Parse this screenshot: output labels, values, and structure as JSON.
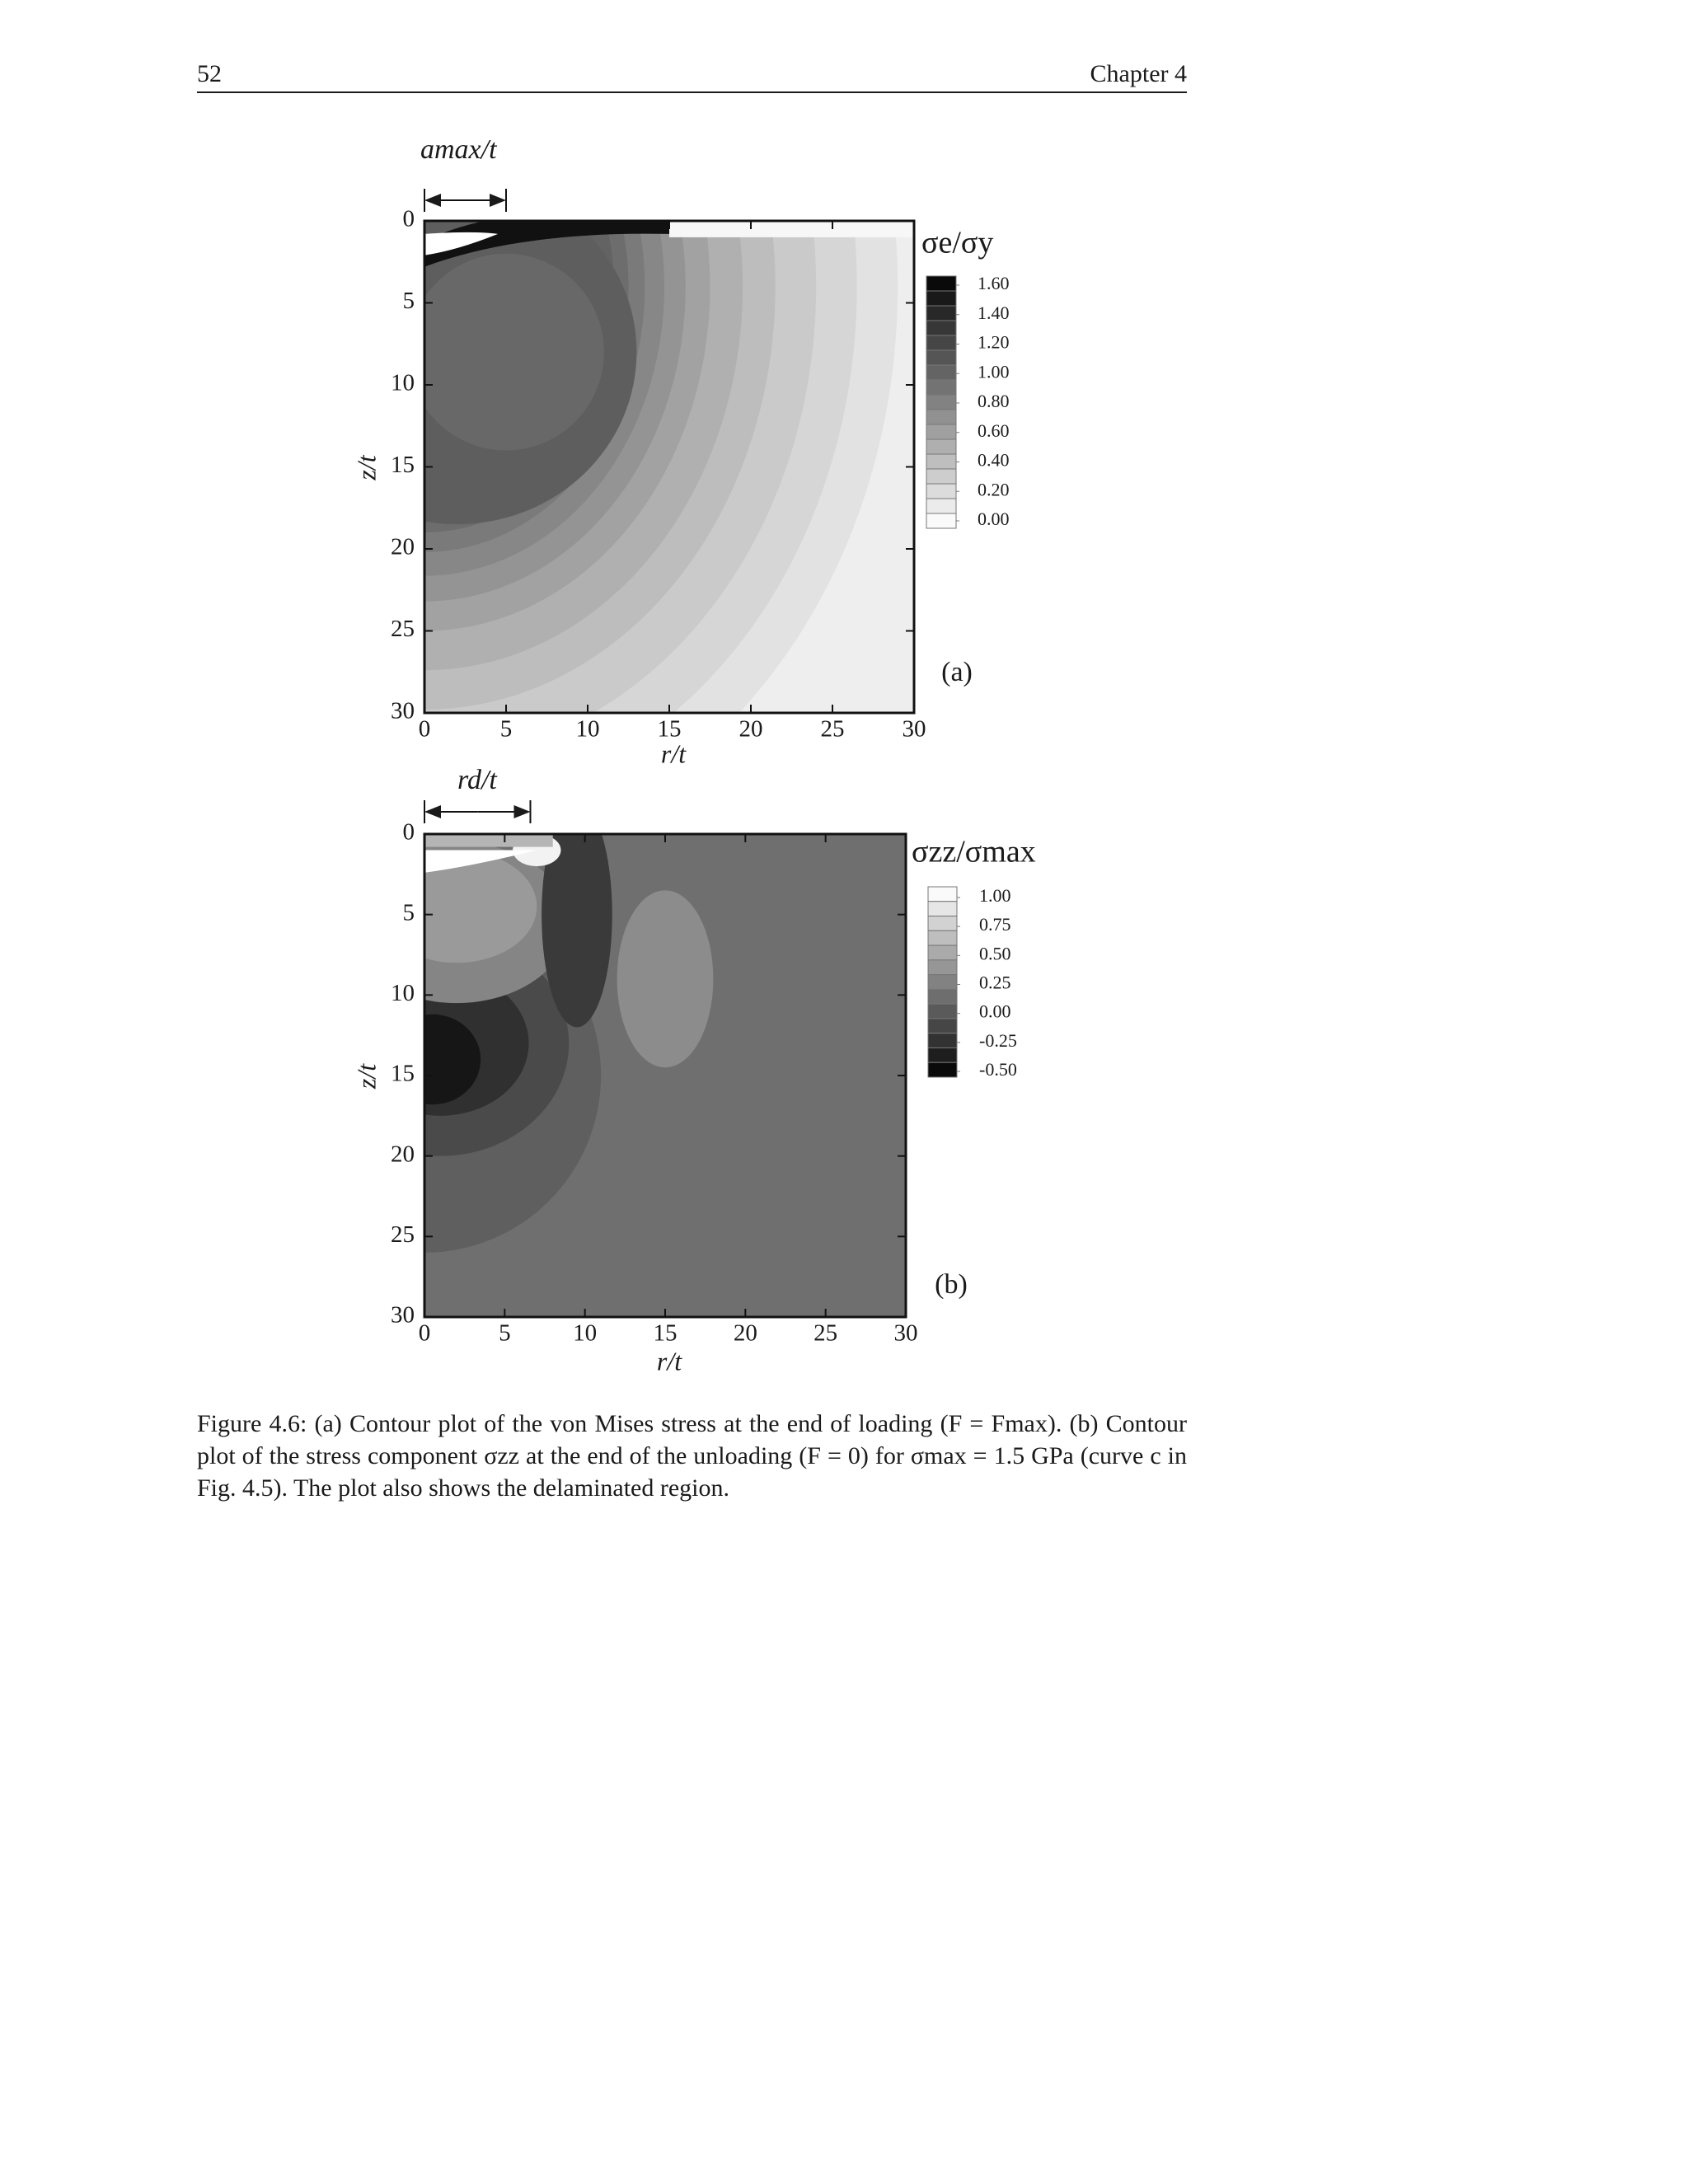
{
  "header": {
    "page_number": "52",
    "chapter": "Chapter 4"
  },
  "chart_data": [
    {
      "type": "contour",
      "panel_label": "(a)",
      "annotation": "amax/t",
      "xlabel": "r/t",
      "ylabel": "z/t",
      "xlim": [
        0,
        30
      ],
      "ylim": [
        0,
        30
      ],
      "y_inverted": true,
      "xticks": [
        0,
        5,
        10,
        15,
        20,
        25,
        30
      ],
      "yticks": [
        0,
        5,
        10,
        15,
        20,
        25,
        30
      ],
      "colorbar_title": "σe/σy",
      "colorbar_ticks": [
        {
          "value": 1.6,
          "label": "1.60"
        },
        {
          "value": 1.4,
          "label": "1.40"
        },
        {
          "value": 1.2,
          "label": "1.20"
        },
        {
          "value": 1.0,
          "label": "1.00"
        },
        {
          "value": 0.8,
          "label": "0.80"
        },
        {
          "value": 0.6,
          "label": "0.60"
        },
        {
          "value": 0.4,
          "label": "0.40"
        },
        {
          "value": 0.2,
          "label": "0.20"
        },
        {
          "value": 0,
          "label": "0.00"
        }
      ]
    },
    {
      "type": "contour",
      "panel_label": "(b)",
      "annotation": "rd/t",
      "xlabel": "r/t",
      "ylabel": "z/t",
      "xlim": [
        0,
        30
      ],
      "ylim": [
        0,
        30
      ],
      "y_inverted": true,
      "xticks": [
        0,
        5,
        10,
        15,
        20,
        25,
        30
      ],
      "yticks": [
        0,
        5,
        10,
        15,
        20,
        25,
        30
      ],
      "colorbar_title": "σzz/σmax",
      "colorbar_ticks": [
        {
          "value": 1.0,
          "label": "1.00"
        },
        {
          "value": 0.75,
          "label": "0.75"
        },
        {
          "value": 0.5,
          "label": "0.50"
        },
        {
          "value": 0.25,
          "label": "0.25"
        },
        {
          "value": 0,
          "label": "0.00"
        },
        {
          "value": -0.25,
          "label": "-0.25"
        },
        {
          "value": -0.5,
          "label": "-0.50"
        }
      ]
    }
  ],
  "caption": "Figure 4.6: (a) Contour plot of the von Mises stress at the end of loading (F = Fmax). (b) Contour plot of the stress component σzz at the end of the unloading (F = 0) for σmax = 1.5 GPa (curve c in Fig. 4.5). The plot also shows the delaminated region."
}
